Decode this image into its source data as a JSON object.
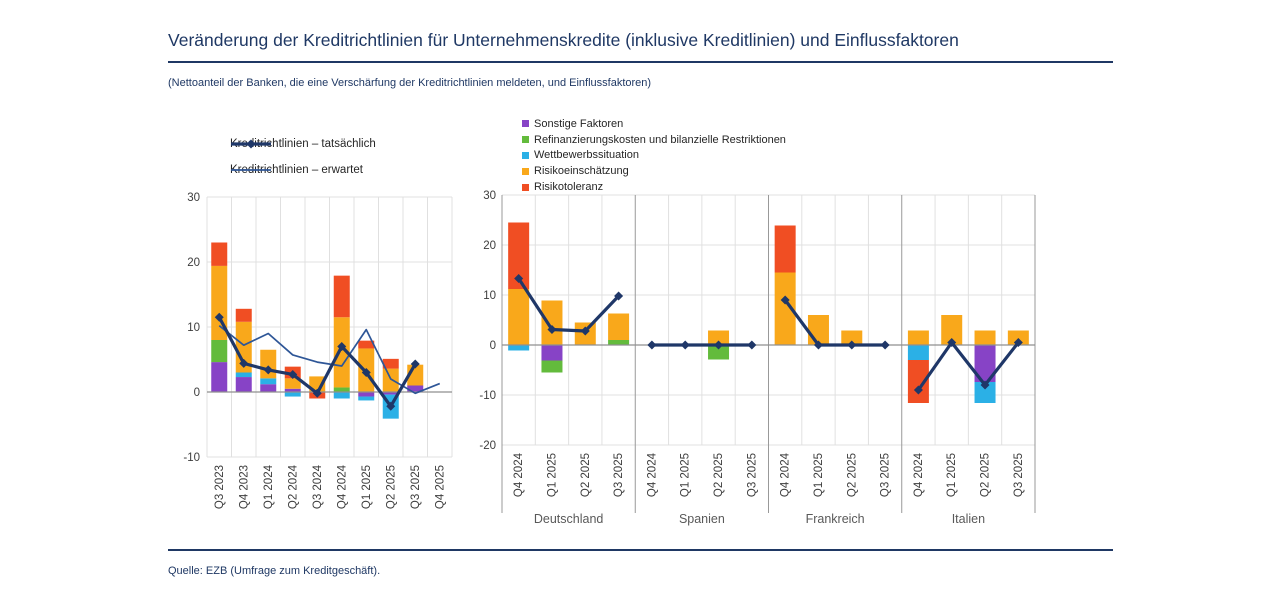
{
  "page": {
    "title": "Veränderung der Kreditrichtlinien für Unternehmenskredite (inklusive Kreditlinien) und Einflussfaktoren",
    "subtitle": "(Nettoanteil der Banken, die eine Verschärfung der Kreditrichtlinien meldeten, und Einflussfaktoren)",
    "source": "Quelle: EZB (Umfrage zum Kreditgeschäft)."
  },
  "colors": {
    "navy_text": "#1F3864",
    "line_actual": "#1F3768",
    "line_expected": "#2E5697",
    "grid": "#E0E0E0",
    "zero_axis": "#8F8F8F",
    "group_separator": "#999999"
  },
  "factors": [
    {
      "key": "sonstige",
      "label": "Sonstige Faktoren",
      "color": "#8743C6"
    },
    {
      "key": "refi",
      "label": "Refinanzierungskosten und bilanzielle Restriktionen",
      "color": "#63BB3C"
    },
    {
      "key": "wettbewerb",
      "label": "Wettbewerbssituation",
      "color": "#2BB0E6"
    },
    {
      "key": "risikoein",
      "label": "Risikoeinschätzung",
      "color": "#F9A81B"
    },
    {
      "key": "risikotol",
      "label": "Risikotoleranz",
      "color": "#F04E23"
    }
  ],
  "chart_data": [
    {
      "id": "euro-area-time-series",
      "type": "bar",
      "stacked": true,
      "ylim": [
        -10,
        30
      ],
      "yticks": [
        30,
        20,
        10,
        0,
        -10
      ],
      "grid": true,
      "categories": [
        "Q3 2023",
        "Q4 2023",
        "Q1 2024",
        "Q2 2024",
        "Q3 2024",
        "Q4 2024",
        "Q1 2025",
        "Q2 2025",
        "Q3 2025",
        "Q4 2025"
      ],
      "bars": [
        {
          "sonstige": 4.6,
          "refi": 3.4,
          "risikoein": 11.4,
          "risikotol": 3.6
        },
        {
          "sonstige": 2.3,
          "wettbewerb": 0.7,
          "risikoein": 7.8,
          "risikotol": 2.0
        },
        {
          "sonstige": 1.2,
          "wettbewerb": 0.9,
          "risikoein": 4.4
        },
        {
          "sonstige": 0.5,
          "risikoein": 1.6,
          "risikotol": 1.8,
          "wettbewerb": -0.7
        },
        {
          "risikoein": 2.4,
          "risikotol": -1.0
        },
        {
          "refi": 0.7,
          "risikoein": 10.8,
          "risikotol": 6.4,
          "wettbewerb": -1.0
        },
        {
          "risikoein": 6.7,
          "risikotol": 1.2,
          "sonstige": -0.7,
          "wettbewerb": -0.6
        },
        {
          "risikoein": 3.6,
          "risikotol": 1.5,
          "sonstige": -0.4,
          "wettbewerb": -3.7
        },
        {
          "sonstige": 1.0,
          "risikoein": 3.2
        },
        {}
      ],
      "line_series": [
        {
          "name": "Kreditrichtlinien – tatsächlich",
          "style": "thick",
          "color": "#1F3768",
          "values": [
            11.5,
            4.4,
            3.4,
            2.7,
            -0.2,
            7.0,
            3.0,
            -2.2,
            4.3,
            null
          ]
        },
        {
          "name": "Kreditrichtlinien – erwartet",
          "style": "thin",
          "color": "#2E5697",
          "values": [
            10.2,
            7.2,
            9.0,
            5.7,
            4.6,
            4.0,
            9.6,
            2.0,
            -0.2,
            1.3
          ]
        }
      ]
    },
    {
      "id": "countries",
      "type": "bar",
      "stacked": true,
      "ylim": [
        -20,
        30
      ],
      "yticks": [
        30,
        20,
        10,
        0,
        -10,
        -20
      ],
      "grid": true,
      "categories": [
        "Q4 2024",
        "Q1 2025",
        "Q2 2025",
        "Q3 2025"
      ],
      "line_name": "Kreditrichtlinien – tatsächlich",
      "groups": [
        {
          "label": "Deutschland",
          "bars": [
            {
              "risikoein": 11.2,
              "risikotol": 13.3,
              "wettbewerb": -1.1
            },
            {
              "risikoein": 8.9,
              "sonstige": -3.1,
              "refi": -2.4
            },
            {
              "risikoein": 4.5
            },
            {
              "refi": 1.0,
              "risikoein": 5.3
            }
          ],
          "line": [
            13.3,
            3.1,
            2.8,
            9.8
          ]
        },
        {
          "label": "Spanien",
          "bars": [
            {},
            {},
            {
              "risikoein": 2.9,
              "refi": -2.9
            },
            {}
          ],
          "line": [
            0,
            0,
            0,
            0
          ]
        },
        {
          "label": "Frankreich",
          "bars": [
            {
              "risikoein": 14.5,
              "risikotol": 9.4
            },
            {
              "risikoein": 6.0
            },
            {
              "risikoein": 2.9
            },
            {}
          ],
          "line": [
            9.0,
            0,
            0,
            0
          ]
        },
        {
          "label": "Italien",
          "bars": [
            {
              "risikoein": 2.9,
              "wettbewerb": -3.0,
              "risikotol": -8.6
            },
            {
              "risikoein": 6.0
            },
            {
              "risikoein": 2.9,
              "sonstige": -7.4,
              "wettbewerb": -4.2
            },
            {
              "risikoein": 2.9
            }
          ],
          "line": [
            -9.0,
            0.5,
            -8.0,
            0.5
          ]
        }
      ]
    }
  ]
}
